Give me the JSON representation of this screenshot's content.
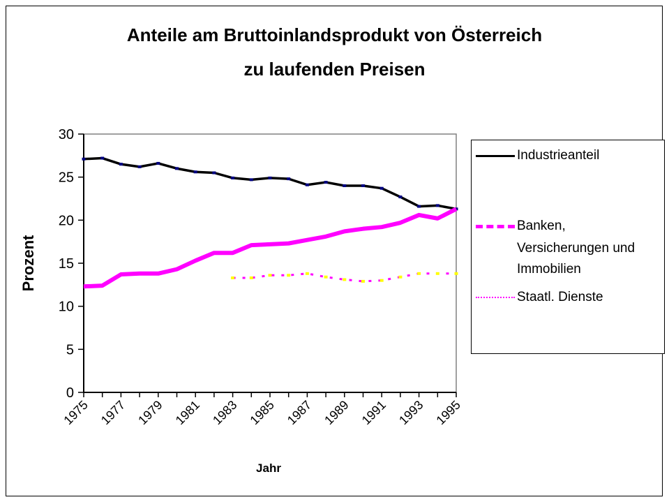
{
  "chart_data": {
    "type": "line",
    "title": "Anteile am Bruttoinlandsprodukt von Österreich",
    "subtitle": "zu laufenden Preisen",
    "xlabel": "Jahr",
    "ylabel": "Prozent",
    "ylim": [
      0,
      30
    ],
    "yticks": [
      0,
      5,
      10,
      15,
      20,
      25,
      30
    ],
    "x": [
      1975,
      1976,
      1977,
      1978,
      1979,
      1980,
      1981,
      1982,
      1983,
      1984,
      1985,
      1986,
      1987,
      1988,
      1989,
      1990,
      1991,
      1992,
      1993,
      1994,
      1995
    ],
    "xtick_labels": [
      "1975",
      "1977",
      "1979",
      "1981",
      "1983",
      "1985",
      "1987",
      "1989",
      "1991",
      "1993",
      "1995"
    ],
    "legend_position": "right",
    "series": [
      {
        "name": "Industrieanteil",
        "color": "#000000",
        "marker_color": "#000080",
        "values": [
          27.1,
          27.2,
          26.5,
          26.2,
          26.6,
          26.0,
          25.6,
          25.5,
          24.9,
          24.7,
          24.9,
          24.8,
          24.1,
          24.4,
          24.0,
          24.0,
          23.7,
          22.7,
          21.6,
          21.7,
          21.3
        ]
      },
      {
        "name": "Banken, Versicherungen und Immobilien",
        "name_lines": [
          "Banken,",
          "Versicherungen und",
          "Immobilien"
        ],
        "color": "#FF00FF",
        "values": [
          12.3,
          12.4,
          13.7,
          13.8,
          13.8,
          14.3,
          15.3,
          16.2,
          16.2,
          17.1,
          17.2,
          17.3,
          17.7,
          18.1,
          18.7,
          19.0,
          19.2,
          19.7,
          20.6,
          20.2,
          21.3
        ]
      },
      {
        "name": "Staatl. Dienste",
        "color": "#FF00FF",
        "marker_color": "#FFFF00",
        "values": [
          null,
          null,
          null,
          null,
          null,
          null,
          null,
          null,
          13.3,
          13.3,
          13.6,
          13.6,
          13.8,
          13.4,
          13.1,
          12.9,
          13.0,
          13.4,
          13.8,
          13.8,
          13.8
        ]
      }
    ]
  }
}
